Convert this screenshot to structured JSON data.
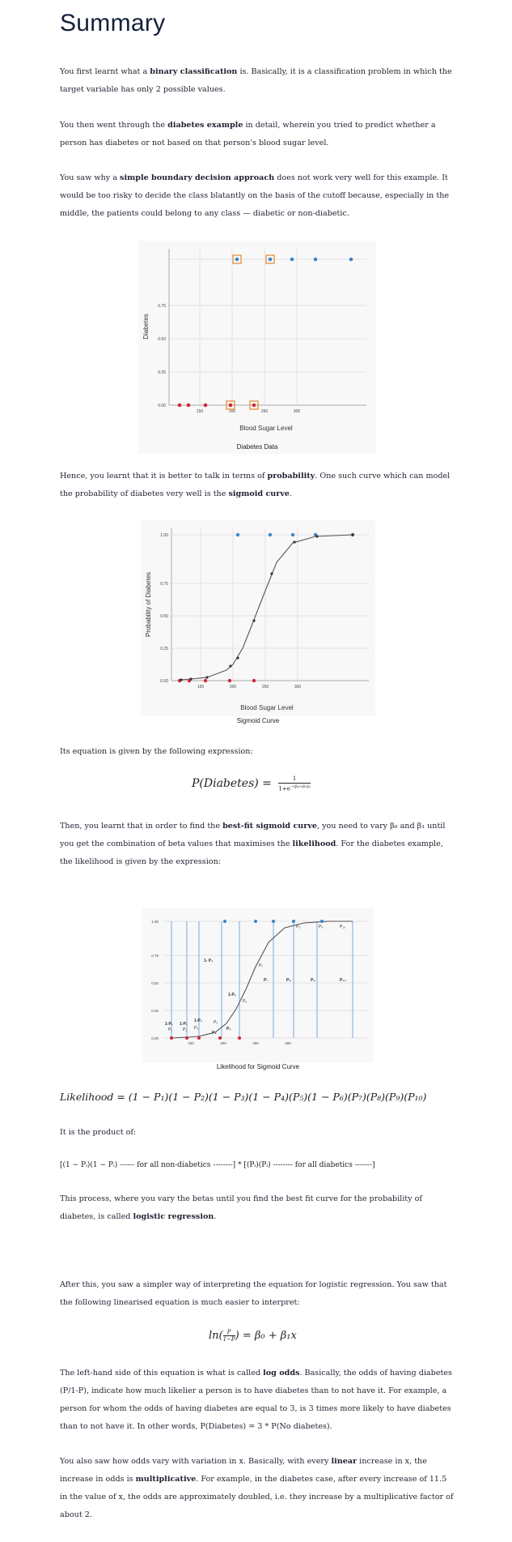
{
  "title": "Summary",
  "para1": {
    "pre": "You first learnt what a ",
    "b1": "binary classification",
    "post": " is. Basically, it is a classification problem in which the target variable has only 2 possible values."
  },
  "para2": {
    "pre": "You then went through the ",
    "b1": "diabetes example",
    "post": " in detail, wherein you tried to predict whether a person has diabetes or not based on that person's blood sugar level."
  },
  "para3": {
    "pre": "You saw why a ",
    "b1": "simple boundary decision approach",
    "post": " does not work very well for this example. It would be too risky to decide the class blatantly on the basis of the cutoff because, especially in the middle, the patients could belong to any class — diabetic or non-diabetic."
  },
  "fig1": {
    "caption": "Diabetes Data",
    "ylabel": "Diabetes",
    "xlabel": "Blood Sugar Level"
  },
  "para4": {
    "pre": "Hence, you learnt that it is better to talk in terms of ",
    "b1": "probability",
    "mid": ". One such curve which can model the probability of diabetes very well is the ",
    "b2": "sigmoid curve",
    "post": "."
  },
  "fig2": {
    "caption": "Sigmoid Curve",
    "ylabel": "Probability of Diabetes",
    "xlabel": "Blood Sugar Level"
  },
  "para5": "Its equation is given by the following expression:",
  "eq1": {
    "lhs": "P(Diabetes) =",
    "num": "1",
    "den": "1+e",
    "exp": "−(β₀+β₁x)"
  },
  "para6": {
    "pre": "Then, you learnt that in order to find the ",
    "b1": "best-fit sigmoid curve",
    "mid": ", you need to vary β₀ and β₁ until you get the combination of beta values that maximises the ",
    "b2": "likelihood",
    "post": ". For the diabetes example, the likelihood is given by the expression:"
  },
  "fig3": {
    "caption": "Likelihood for Sigmoid Curve"
  },
  "eq2": "Likelihood = (1 − P₁)(1 − P₂)(1 − P₃)(1 − P₄)(P₅)(1 − P₆)(P₇)(P₈)(P₉)(P₁₀)",
  "para7": "It is the product of:",
  "eq3": "[(1 − Pᵢ)(1 − Pᵢ) ------ for all non-diabetics --------] * [(Pᵢ)(Pᵢ) -------- for all diabetics -------]",
  "para8": {
    "pre": "This process, where you vary the betas until you find the best fit curve for the probability of diabetes, is called ",
    "b1": "logistic regression",
    "post": "."
  },
  "para9": "After this, you saw a simpler way of interpreting the equation for logistic regression. You saw that the following linearised equation is much easier to interpret:",
  "eq4": {
    "lhs": "ln(",
    "num": "P",
    "den": "1−P",
    "rhs": ") = β₀ + β₁x"
  },
  "para10": {
    "pre": "The left-hand side of this equation is what is called ",
    "b1": "log odds",
    "post": ". Basically, the odds of having diabetes (P/1-P), indicate how much likelier a person is to have diabetes than to not have it. For example, a person for whom the odds of having diabetes are equal to 3, is 3 times more likely to have diabetes than to not have it. In other words, P(Diabetes) = 3 * P(No diabetes)."
  },
  "para11": {
    "pre": "You also saw how odds vary with variation in x. Basically, with every ",
    "b1": "linear",
    "mid": " increase in x, the increase in odds is ",
    "b2": "multiplicative",
    "post": ". For example, in the diabetes case, after every increase of 11.5 in the value of x, the odds are approximately doubled, i.e. they increase by a multiplicative factor of about 2."
  },
  "axes": {
    "y": [
      "0.00",
      "0.25",
      "0.50",
      "0.75",
      "1.00"
    ],
    "x": [
      "150",
      "200",
      "250",
      "300"
    ]
  },
  "fig3_labels": {
    "top": [
      "P₅",
      "P₉",
      "P₁₀"
    ],
    "mid": [
      "1- P₄",
      "P₇",
      "P₈",
      "P₉",
      "P₁₀",
      "1-P₆",
      "P₆",
      "P₇"
    ],
    "low": [
      "1-P₁",
      "1-P₂",
      "1-P₃",
      "P₁",
      "P₂",
      "P₃",
      "P₄",
      "P₅",
      "P₄"
    ]
  }
}
